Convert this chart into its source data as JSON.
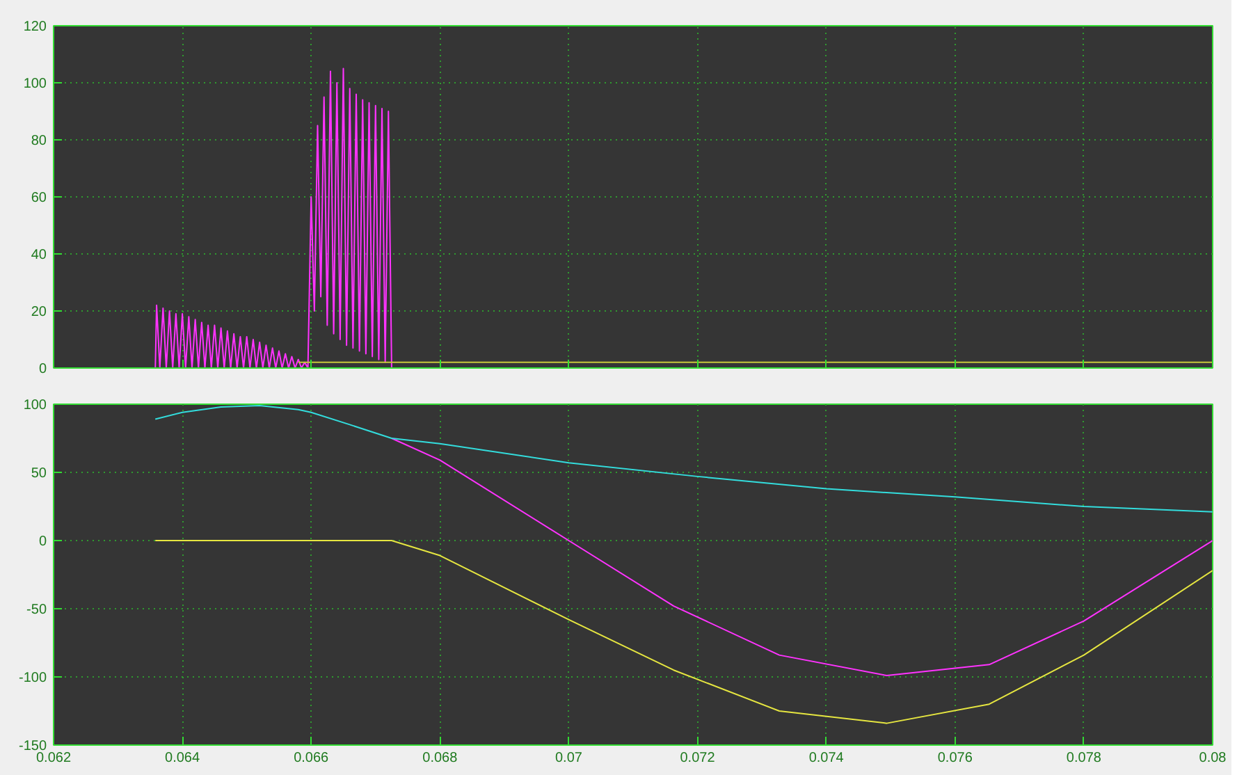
{
  "chart_data": [
    {
      "type": "line",
      "xlim": [
        0.062,
        0.08
      ],
      "ylim": [
        0,
        120
      ],
      "xticks": [
        0.062,
        0.064,
        0.066,
        0.068,
        0.07,
        0.072,
        0.074,
        0.076,
        0.078,
        0.08
      ],
      "yticks": [
        0,
        20,
        40,
        60,
        80,
        100,
        120
      ],
      "grid": true,
      "tick_labels": "y",
      "series": [
        {
          "color": "#ff33ff",
          "x": [
            0.06358,
            0.0636,
            0.06365,
            0.0637,
            0.06375,
            0.0638,
            0.06385,
            0.0639,
            0.06395,
            0.064,
            0.06405,
            0.0641,
            0.06415,
            0.0642,
            0.06425,
            0.0643,
            0.06435,
            0.0644,
            0.06445,
            0.0645,
            0.06455,
            0.0646,
            0.06465,
            0.0647,
            0.06475,
            0.0648,
            0.06485,
            0.0649,
            0.06495,
            0.065,
            0.06505,
            0.0651,
            0.06515,
            0.0652,
            0.06525,
            0.0653,
            0.06535,
            0.0654,
            0.06545,
            0.0655,
            0.06555,
            0.0656,
            0.06565,
            0.0657,
            0.06575,
            0.0658,
            0.06585,
            0.0659,
            0.06595,
            0.066,
            0.06605,
            0.0661,
            0.06615,
            0.0662,
            0.06625,
            0.0663,
            0.06635,
            0.0664,
            0.06645,
            0.0665,
            0.06655,
            0.0666,
            0.06665,
            0.0667,
            0.06675,
            0.0668,
            0.06685,
            0.0669,
            0.06695,
            0.067,
            0.06705,
            0.0671,
            0.06715,
            0.0672,
            0.06725,
            0.08
          ],
          "values": [
            0,
            22,
            0,
            21,
            0,
            20,
            0,
            19,
            0,
            19,
            0,
            18,
            0,
            17,
            0,
            16,
            0,
            15,
            0,
            15,
            0,
            14,
            0,
            13,
            0,
            12,
            0,
            11,
            0,
            11,
            0,
            10,
            0,
            9,
            0,
            8,
            0,
            7,
            0,
            6,
            0,
            5,
            0,
            4,
            0,
            3,
            0,
            2,
            0,
            60,
            20,
            85,
            25,
            95,
            15,
            104,
            12,
            100,
            10,
            105,
            8,
            98,
            7,
            96,
            6,
            94,
            5,
            93,
            4,
            92,
            3,
            91,
            2,
            90,
            0,
            0
          ]
        },
        {
          "color": "#c8c83c",
          "x": [
            0.0658,
            0.08
          ],
          "values": [
            2,
            2
          ]
        }
      ]
    },
    {
      "type": "line",
      "xlim": [
        0.062,
        0.08
      ],
      "ylim": [
        -150,
        100
      ],
      "xticks": [
        0.062,
        0.064,
        0.066,
        0.068,
        0.07,
        0.072,
        0.074,
        0.076,
        0.078,
        0.08
      ],
      "yticks": [
        -150,
        -100,
        -50,
        0,
        50,
        100
      ],
      "grid": true,
      "series": [
        {
          "color": "#ff33ff",
          "x": [
            0.06725,
            0.068,
            0.07,
            0.07163,
            0.07327,
            0.07494,
            0.07653,
            0.078,
            0.08
          ],
          "values": [
            75,
            59,
            0,
            -48,
            -84,
            -99,
            -91,
            -59,
            0
          ]
        },
        {
          "color": "#33dddd",
          "x": [
            0.06358,
            0.064,
            0.0646,
            0.0652,
            0.0658,
            0.066,
            0.0666,
            0.06725,
            0.068,
            0.07,
            0.072,
            0.074,
            0.076,
            0.078,
            0.08
          ],
          "values": [
            89,
            94,
            98,
            99,
            96,
            94,
            85,
            75,
            71,
            57,
            47,
            38,
            32,
            25,
            21
          ]
        },
        {
          "color": "#e6e640",
          "x": [
            0.06358,
            0.06725,
            0.068,
            0.07,
            0.07163,
            0.07327,
            0.07494,
            0.07653,
            0.078,
            0.08
          ],
          "values": [
            0,
            0,
            -11,
            -58,
            -95,
            -125,
            -134,
            -120,
            -84,
            -22
          ]
        }
      ]
    }
  ]
}
